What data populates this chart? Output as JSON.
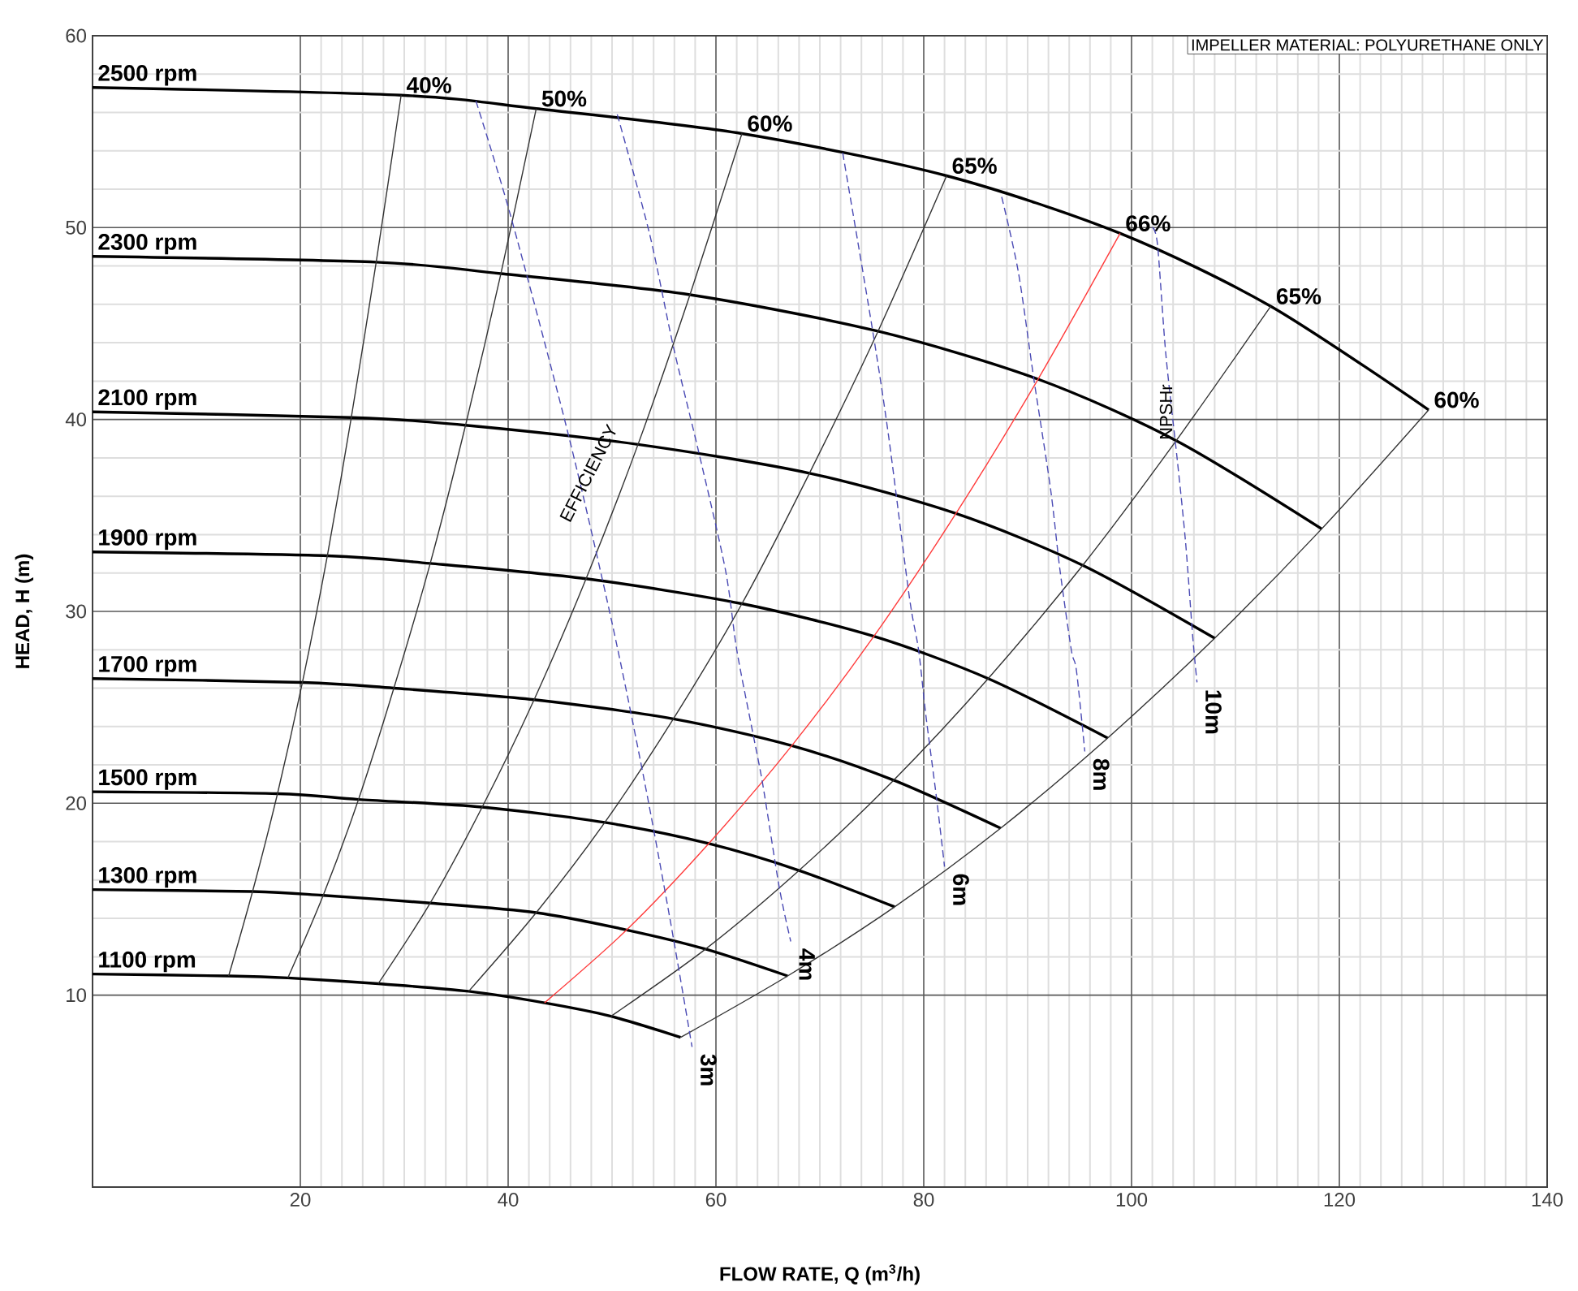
{
  "chart_data": {
    "type": "line",
    "xlabel": "FLOW RATE, Q (m$^{3}$/h)",
    "ylabel": "HEAD, H (m)",
    "xlim": [
      0,
      140
    ],
    "ylim": [
      0,
      60
    ],
    "xticks": [
      20,
      40,
      60,
      80,
      100,
      120,
      140
    ],
    "yticks": [
      10,
      20,
      30,
      40,
      50,
      60
    ],
    "grid": true,
    "annotations": [
      "EFFICIENCY",
      "NPSHr",
      "IMPELLER MATERIAL: POLYURETHANE ONLY"
    ],
    "series": [
      {
        "name": "2500 rpm",
        "color": "#000000",
        "x": [
          0,
          29.7,
          42.7,
          62.5,
          82.2,
          98.9,
          113.4,
          128.6
        ],
        "values": [
          57.3,
          56.9,
          56.2,
          54.9,
          52.7,
          49.7,
          45.9,
          40.5
        ]
      },
      {
        "name": "2300 rpm",
        "color": "#000000",
        "x": [
          0,
          27.3,
          39.3,
          57.5,
          75.6,
          91.0,
          104.3,
          118.3
        ],
        "values": [
          48.5,
          48.2,
          47.6,
          46.5,
          44.6,
          42.1,
          38.9,
          34.3
        ]
      },
      {
        "name": "2100 rpm",
        "color": "#000000",
        "x": [
          0,
          24.9,
          35.9,
          52.5,
          69.0,
          83.1,
          95.3,
          108.0
        ],
        "values": [
          40.4,
          40.1,
          39.7,
          38.7,
          37.2,
          35.1,
          32.4,
          28.6
        ]
      },
      {
        "name": "1900 rpm",
        "color": "#000000",
        "x": [
          0,
          22.6,
          32.5,
          47.5,
          62.5,
          75.2,
          86.2,
          97.7
        ],
        "values": [
          33.1,
          32.9,
          32.5,
          31.7,
          30.4,
          28.7,
          26.5,
          23.4
        ]
      },
      {
        "name": "1700 rpm",
        "color": "#000000",
        "x": [
          0,
          20.2,
          29.0,
          42.5,
          55.9,
          67.3,
          77.1,
          87.4
        ],
        "values": [
          26.5,
          26.3,
          26.0,
          25.4,
          24.4,
          23.0,
          21.2,
          18.7
        ]
      },
      {
        "name": "1500 rpm",
        "color": "#000000",
        "x": [
          0,
          17.8,
          25.6,
          37.5,
          49.3,
          59.3,
          68.0,
          77.2
        ],
        "values": [
          20.6,
          20.5,
          20.2,
          19.8,
          19.0,
          17.9,
          16.5,
          14.6
        ]
      },
      {
        "name": "1300 rpm",
        "color": "#000000",
        "x": [
          0,
          15.4,
          22.2,
          32.5,
          42.7,
          51.4,
          59.0,
          66.9
        ],
        "values": [
          15.5,
          15.4,
          15.2,
          14.8,
          14.3,
          13.4,
          12.4,
          11.0
        ]
      },
      {
        "name": "1100 rpm",
        "color": "#000000",
        "x": [
          0,
          13.1,
          18.8,
          27.5,
          36.2,
          43.5,
          49.9,
          56.6
        ],
        "values": [
          11.1,
          11.0,
          10.9,
          10.6,
          10.2,
          9.6,
          8.9,
          7.8
        ]
      },
      {
        "name": "40%",
        "color": "#333333",
        "x": [
          29.7,
          27.3,
          24.9,
          22.6,
          20.2,
          17.8,
          15.4,
          13.1
        ],
        "values": [
          56.9,
          48.2,
          40.1,
          32.9,
          26.3,
          20.5,
          15.4,
          11.0
        ]
      },
      {
        "name": "50%",
        "color": "#333333",
        "x": [
          42.7,
          39.3,
          35.9,
          32.5,
          29.0,
          25.6,
          22.2,
          18.8
        ],
        "values": [
          56.2,
          47.6,
          39.7,
          32.5,
          26.0,
          20.2,
          15.2,
          10.9
        ]
      },
      {
        "name": "60%",
        "color": "#333333",
        "x": [
          62.5,
          57.5,
          52.5,
          47.5,
          42.5,
          37.5,
          32.5,
          27.5
        ],
        "values": [
          54.9,
          46.5,
          38.7,
          31.7,
          25.4,
          19.8,
          14.8,
          10.6
        ]
      },
      {
        "name": "65%",
        "color": "#333333",
        "x": [
          82.2,
          75.6,
          69.0,
          62.5,
          55.9,
          49.3,
          42.7,
          36.2
        ],
        "values": [
          52.7,
          44.6,
          37.2,
          30.4,
          24.4,
          19.0,
          14.3,
          10.2
        ]
      },
      {
        "name": "66%",
        "color": "#ff3b3b",
        "x": [
          98.9,
          91.0,
          83.1,
          75.2,
          67.3,
          59.3,
          51.4,
          43.5
        ],
        "values": [
          49.7,
          42.1,
          35.1,
          28.7,
          23.0,
          17.9,
          13.4,
          9.6
        ]
      },
      {
        "name": "65%",
        "color": "#333333",
        "x": [
          113.4,
          104.3,
          95.3,
          86.2,
          77.1,
          68.0,
          59.0,
          49.9
        ],
        "values": [
          45.9,
          38.9,
          32.4,
          26.5,
          21.2,
          16.5,
          12.4,
          8.9
        ]
      },
      {
        "name": "60%",
        "color": "#333333",
        "x": [
          128.6,
          118.3,
          108.0,
          97.7,
          87.4,
          77.2,
          66.9,
          56.6
        ],
        "values": [
          40.5,
          34.3,
          28.6,
          23.4,
          18.7,
          14.6,
          11.0,
          7.8
        ]
      },
      {
        "name": "3m",
        "color": "#4a4ab4",
        "line_style": "dashed",
        "x": [
          36.9,
          40.3,
          45.8,
          50.0,
          53.1,
          55.6,
          57.7
        ],
        "values": [
          56.6,
          50.5,
          39.2,
          29.4,
          21.2,
          13.9,
          7.3
        ]
      },
      {
        "name": "4m",
        "color": "#4a4ab4",
        "line_style": "dashed",
        "x": [
          50.5,
          53.6,
          55.9,
          58.3,
          60.9,
          62.0,
          63.5,
          64.5,
          66.1,
          67.2
        ],
        "values": [
          55.9,
          49.7,
          43.8,
          38.4,
          32.2,
          28.0,
          23.8,
          21.0,
          15.6,
          12.8
        ]
      },
      {
        "name": "6m",
        "color": "#4a4ab4",
        "line_style": "dashed",
        "x": [
          72.2,
          75.0,
          76.6,
          78.6,
          79.5,
          80.2,
          81.2,
          82.0
        ],
        "values": [
          53.9,
          44.9,
          39.2,
          30.8,
          28.0,
          24.6,
          20.4,
          16.7
        ]
      },
      {
        "name": "8m",
        "color": "#4a4ab4",
        "line_style": "dashed",
        "x": [
          87.5,
          89.1,
          90.6,
          92.2,
          93.1,
          94.2,
          94.7,
          95.5
        ],
        "values": [
          51.6,
          47.7,
          42.1,
          36.4,
          32.2,
          28.0,
          26.9,
          22.7
        ]
      },
      {
        "name": "10m",
        "color": "#4a4ab4",
        "line_style": "dashed",
        "x": [
          102.0,
          102.5,
          103.3,
          104.4,
          105.2,
          105.9,
          106.3
        ],
        "values": [
          50.0,
          49.1,
          43.4,
          37.9,
          33.6,
          28.6,
          26.3
        ]
      }
    ]
  }
}
